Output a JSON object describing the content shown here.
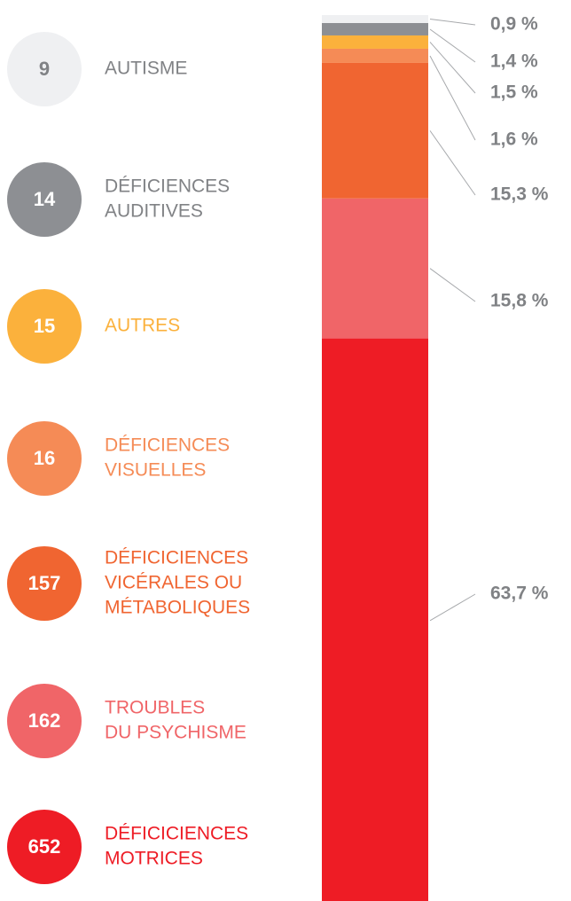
{
  "chart_data": {
    "type": "stacked_bar",
    "ylim": [
      0,
      100
    ],
    "series": [
      {
        "name": [
          "AUTISME"
        ],
        "count": 9,
        "values": [
          0.9
        ],
        "value_labels": [
          "0,9 %"
        ],
        "color": "#eff0f2",
        "text_color": "#808285",
        "count_color": "#808285"
      },
      {
        "name": [
          "DÉFICIENCES",
          "AUDITIVES"
        ],
        "count": 14,
        "values": [
          1.4
        ],
        "value_labels": [
          "1,4 %"
        ],
        "color": "#8d8f93",
        "text_color": "#808285",
        "count_color": "#ffffff"
      },
      {
        "name": [
          "AUTRES"
        ],
        "count": 15,
        "values": [
          1.5
        ],
        "value_labels": [
          "1,5 %"
        ],
        "color": "#fbb13c",
        "text_color": "#fbb13c",
        "count_color": "#ffffff"
      },
      {
        "name": [
          "DÉFICIENCES",
          "VISUELLES"
        ],
        "count": 16,
        "values": [
          1.6
        ],
        "value_labels": [
          "1,6 %"
        ],
        "color": "#f58b56",
        "text_color": "#f58b56",
        "count_color": "#ffffff"
      },
      {
        "name": [
          "DÉFICICIENCES",
          "VICÉRALES  OU",
          "MÉTABOLIQUES"
        ],
        "count": 157,
        "values": [
          15.3
        ],
        "value_labels": [
          "15,3 %"
        ],
        "color": "#f06531",
        "text_color": "#f06531",
        "count_color": "#ffffff"
      },
      {
        "name": [
          "TROUBLES",
          "DU PSYCHISME"
        ],
        "count": 162,
        "values": [
          15.8
        ],
        "value_labels": [
          "15,8 %"
        ],
        "color": "#f06568",
        "text_color": "#f06568",
        "count_color": "#ffffff"
      },
      {
        "name": [
          "DÉFICICIENCES",
          "MOTRICES"
        ],
        "count": 652,
        "values": [
          63.7
        ],
        "value_labels": [
          "63,7 %"
        ],
        "color": "#ee1c25",
        "text_color": "#ee1c25",
        "count_color": "#ffffff"
      }
    ]
  }
}
